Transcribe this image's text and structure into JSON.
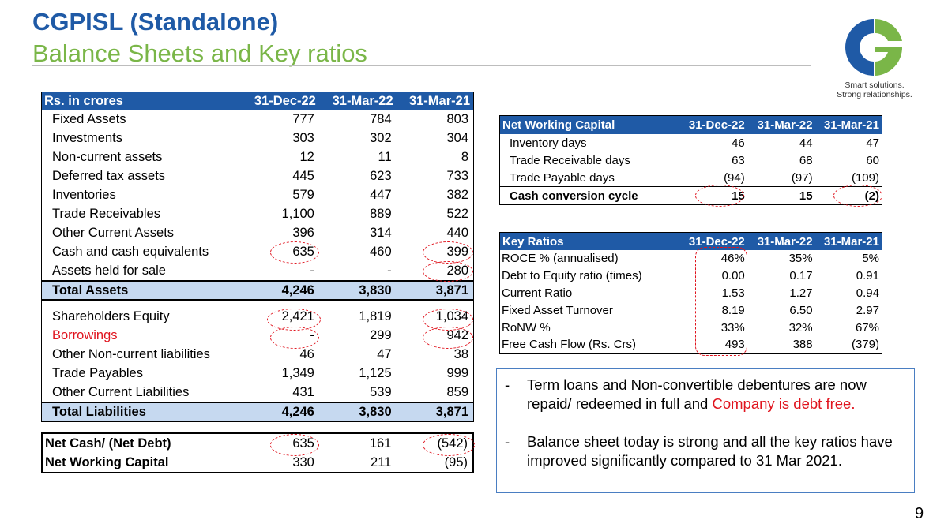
{
  "header": {
    "title": "CGPISL (Standalone)",
    "subtitle": "Balance Sheets and Key ratios"
  },
  "logo": {
    "tagline_1": "Smart solutions.",
    "tagline_2": "Strong relationships.",
    "colors": {
      "blue": "#1f5aa6",
      "green": "#7ab648"
    }
  },
  "balance_sheet": {
    "header": [
      "Rs. in crores",
      "31-Dec-22",
      "31-Mar-22",
      "31-Mar-21"
    ],
    "assets": [
      [
        "Fixed Assets",
        "777",
        "784",
        "803"
      ],
      [
        "Investments",
        "303",
        "302",
        "304"
      ],
      [
        "Non-current assets",
        "12",
        "11",
        "8"
      ],
      [
        "Deferred tax assets",
        "445",
        "623",
        "733"
      ],
      [
        "Inventories",
        "579",
        "447",
        "382"
      ],
      [
        "Trade Receivables",
        "1,100",
        "889",
        "522"
      ],
      [
        "Other Current Assets",
        "396",
        "314",
        "440"
      ],
      [
        "Cash and cash equivalents",
        "635",
        "460",
        "399"
      ],
      [
        "Assets held for sale",
        "-",
        "-",
        "280"
      ]
    ],
    "total_assets": [
      "Total Assets",
      "4,246",
      "3,830",
      "3,871"
    ],
    "liabilities": [
      [
        "Shareholders Equity",
        "2,421",
        "1,819",
        "1,034"
      ],
      [
        "Borrowings",
        "-",
        "299",
        "942"
      ],
      [
        "Other Non-current liabilities",
        "46",
        "47",
        "38"
      ],
      [
        "Trade Payables",
        "1,349",
        "1,125",
        "999"
      ],
      [
        "Other Current Liabilities",
        "431",
        "539",
        "859"
      ]
    ],
    "total_liabilities": [
      "Total Liabilities",
      "4,246",
      "3,830",
      "3,871"
    ]
  },
  "net_cash": [
    [
      "Net Cash/ (Net Debt)",
      "635",
      "161",
      "(542)"
    ],
    [
      "Net Working Capital",
      "330",
      "211",
      "(95)"
    ]
  ],
  "net_working_capital": {
    "header": [
      "Net Working Capital",
      "31-Dec-22",
      "31-Mar-22",
      "31-Mar-21"
    ],
    "rows": [
      [
        "Inventory days",
        "46",
        "44",
        "47"
      ],
      [
        "Trade Receivable days",
        "63",
        "68",
        "60"
      ],
      [
        "Trade Payable days",
        "(94)",
        "(97)",
        "(109)"
      ]
    ],
    "total": [
      "Cash conversion cycle",
      "15",
      "15",
      "(2)"
    ]
  },
  "key_ratios": {
    "header": [
      "Key Ratios",
      "31-Dec-22",
      "31-Mar-22",
      "31-Mar-21"
    ],
    "rows": [
      [
        "ROCE % (annualised)",
        "46%",
        "35%",
        "5%"
      ],
      [
        "Debt to Equity ratio (times)",
        "0.00",
        "0.17",
        "0.91"
      ],
      [
        "Current Ratio",
        "1.53",
        "1.27",
        "0.94"
      ],
      [
        "Fixed Asset Turnover",
        "8.19",
        "6.50",
        "2.97"
      ],
      [
        "RoNW %",
        "33%",
        "32%",
        "67%"
      ],
      [
        "Free Cash Flow (Rs. Crs)",
        "493",
        "388",
        "(379)"
      ]
    ]
  },
  "notes": {
    "dash": "-",
    "bullet1_text": "Term loans and Non-convertible debentures are now repaid/ redeemed in full and ",
    "bullet1_highlight": "Company is debt free.",
    "bullet2_text": "Balance sheet today is strong and all the key ratios have improved significantly compared to 31 Mar 2021."
  },
  "page_number": "9"
}
